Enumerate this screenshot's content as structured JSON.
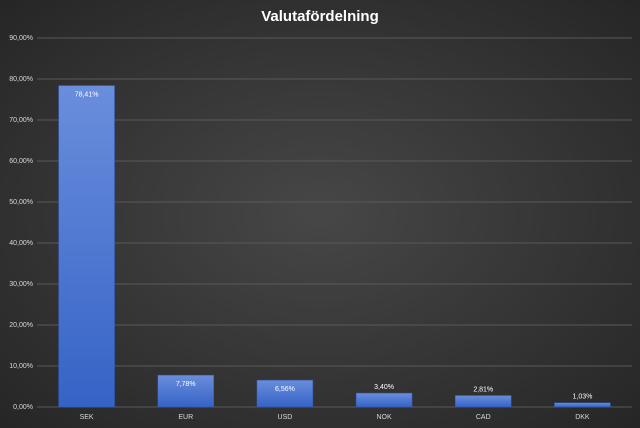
{
  "chart_data": {
    "type": "bar",
    "title": "Valutafördelning",
    "categories": [
      "SEK",
      "EUR",
      "USD",
      "NOK",
      "CAD",
      "DKK"
    ],
    "values": [
      78.41,
      7.78,
      6.56,
      3.4,
      2.81,
      1.03
    ],
    "value_labels": [
      "78,41%",
      "7,78%",
      "6,56%",
      "3,40%",
      "2,81%",
      "1,03%"
    ],
    "color": "#4472c4",
    "ylim": [
      0,
      90
    ],
    "yticks": [
      {
        "value": 0,
        "label": "0,00%"
      },
      {
        "value": 10,
        "label": "10,00%"
      },
      {
        "value": 20,
        "label": "20,00%"
      },
      {
        "value": 30,
        "label": "30,00%"
      },
      {
        "value": 40,
        "label": "40,00%"
      },
      {
        "value": 50,
        "label": "50,00%"
      },
      {
        "value": 60,
        "label": "60,00%"
      },
      {
        "value": 70,
        "label": "70,00%"
      },
      {
        "value": 80,
        "label": "80,00%"
      },
      {
        "value": 90,
        "label": "90,00%"
      }
    ],
    "grid": true
  }
}
